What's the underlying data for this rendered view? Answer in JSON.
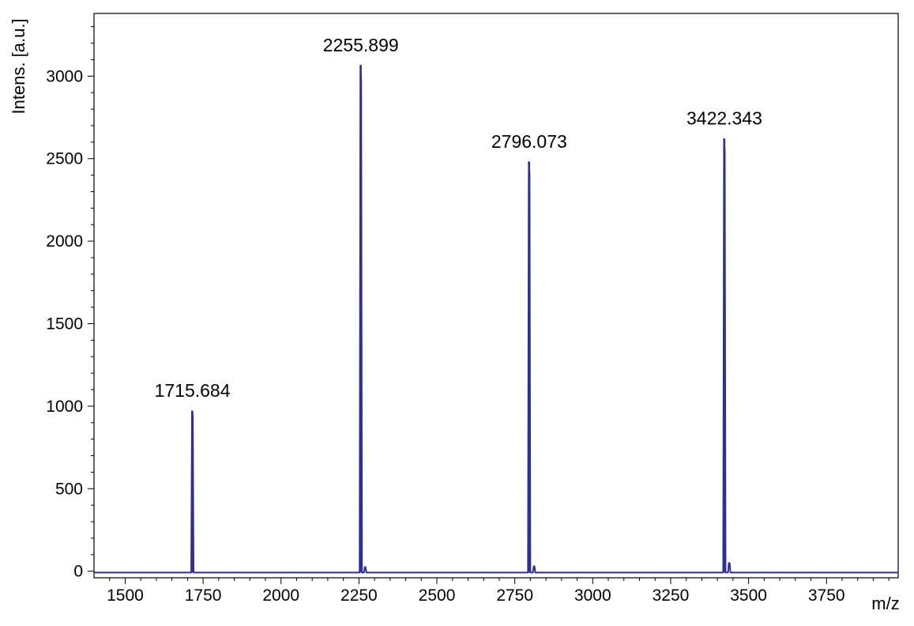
{
  "chart_data": {
    "type": "line",
    "xlabel": "m/z",
    "ylabel": "Intens. [a.u.]",
    "xlim": [
      1400,
      3980
    ],
    "ylim": [
      -40,
      3380
    ],
    "x_ticks": [
      1500,
      1750,
      2000,
      2250,
      2500,
      2750,
      3000,
      3250,
      3500,
      3750
    ],
    "y_ticks": [
      0,
      500,
      1000,
      1500,
      2000,
      2500,
      3000
    ],
    "line_color": "#2e3192",
    "grid": false,
    "peaks": [
      {
        "label": "1715.684",
        "mz": 1715.684,
        "intensity": 970
      },
      {
        "label": "2255.899",
        "mz": 2255.899,
        "intensity": 3065
      },
      {
        "label": "2796.073",
        "mz": 2796.073,
        "intensity": 2480
      },
      {
        "label": "3422.343",
        "mz": 3422.343,
        "intensity": 2620
      }
    ],
    "minor_peaks": [
      {
        "mz": 2270,
        "intensity": 25
      },
      {
        "mz": 2812,
        "intensity": 30
      },
      {
        "mz": 3438,
        "intensity": 50
      }
    ],
    "baseline": -8
  }
}
